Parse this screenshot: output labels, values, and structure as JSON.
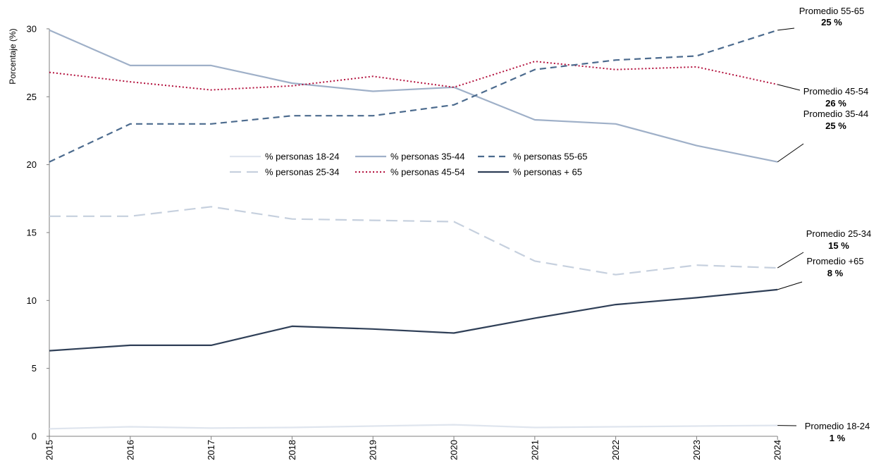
{
  "chart_data": {
    "type": "line",
    "ylabel": "Porcentaje (%)",
    "xlabel": "",
    "ylim": [
      0,
      30
    ],
    "y_ticks": [
      0,
      5,
      10,
      15,
      20,
      25,
      30
    ],
    "grid": false,
    "legend_position": "center",
    "categories": [
      "2015",
      "2016",
      "2017",
      "2018",
      "2019",
      "2020",
      "2021",
      "2022",
      "2023",
      "2024"
    ],
    "series": [
      {
        "name": "% personas 18-24",
        "values": [
          0.55,
          0.7,
          0.6,
          0.65,
          0.75,
          0.85,
          0.65,
          0.7,
          0.75,
          0.8
        ],
        "color": "#dfe5ee",
        "dash": "solid",
        "width": 2.2,
        "annotation": {
          "label": "Promedio 18-24",
          "value": "1 %"
        }
      },
      {
        "name": "% personas 25-34",
        "values": [
          16.2,
          16.2,
          16.9,
          16.0,
          15.9,
          15.8,
          12.9,
          11.9,
          12.6,
          12.4
        ],
        "color": "#c6d0de",
        "dash": "long-dash",
        "width": 2.2,
        "annotation": {
          "label": "Promedio 25-34",
          "value": "15 %"
        }
      },
      {
        "name": "% personas 35-44",
        "values": [
          29.9,
          27.3,
          27.3,
          26.0,
          25.4,
          25.7,
          23.3,
          23.0,
          21.4,
          20.2
        ],
        "color": "#9fb0c8",
        "dash": "solid",
        "width": 2.2,
        "annotation": {
          "label": "Promedio 35-44",
          "value": "25 %"
        }
      },
      {
        "name": "% personas 45-54",
        "values": [
          26.8,
          26.1,
          25.5,
          25.8,
          26.5,
          25.7,
          27.6,
          27.0,
          27.2,
          25.9
        ],
        "color": "#b3113d",
        "dash": "dotted",
        "width": 2.0,
        "annotation": {
          "label": "Promedio 45-54",
          "value": "26 %"
        }
      },
      {
        "name": "% personas 55-65",
        "values": [
          20.2,
          23.0,
          23.0,
          23.6,
          23.6,
          24.4,
          27.0,
          27.7,
          28.0,
          29.9
        ],
        "color": "#4c6b8e",
        "dash": "dashed",
        "width": 2.2,
        "annotation": {
          "label": "Promedio 55-65",
          "value": "25 %"
        }
      },
      {
        "name": "% personas + 65",
        "values": [
          6.3,
          6.7,
          6.7,
          8.1,
          7.9,
          7.6,
          8.7,
          9.7,
          10.2,
          10.8
        ],
        "color": "#2f3f57",
        "dash": "solid",
        "width": 2.2,
        "annotation": {
          "label": "Promedio +65",
          "value": "8 %"
        }
      }
    ]
  }
}
